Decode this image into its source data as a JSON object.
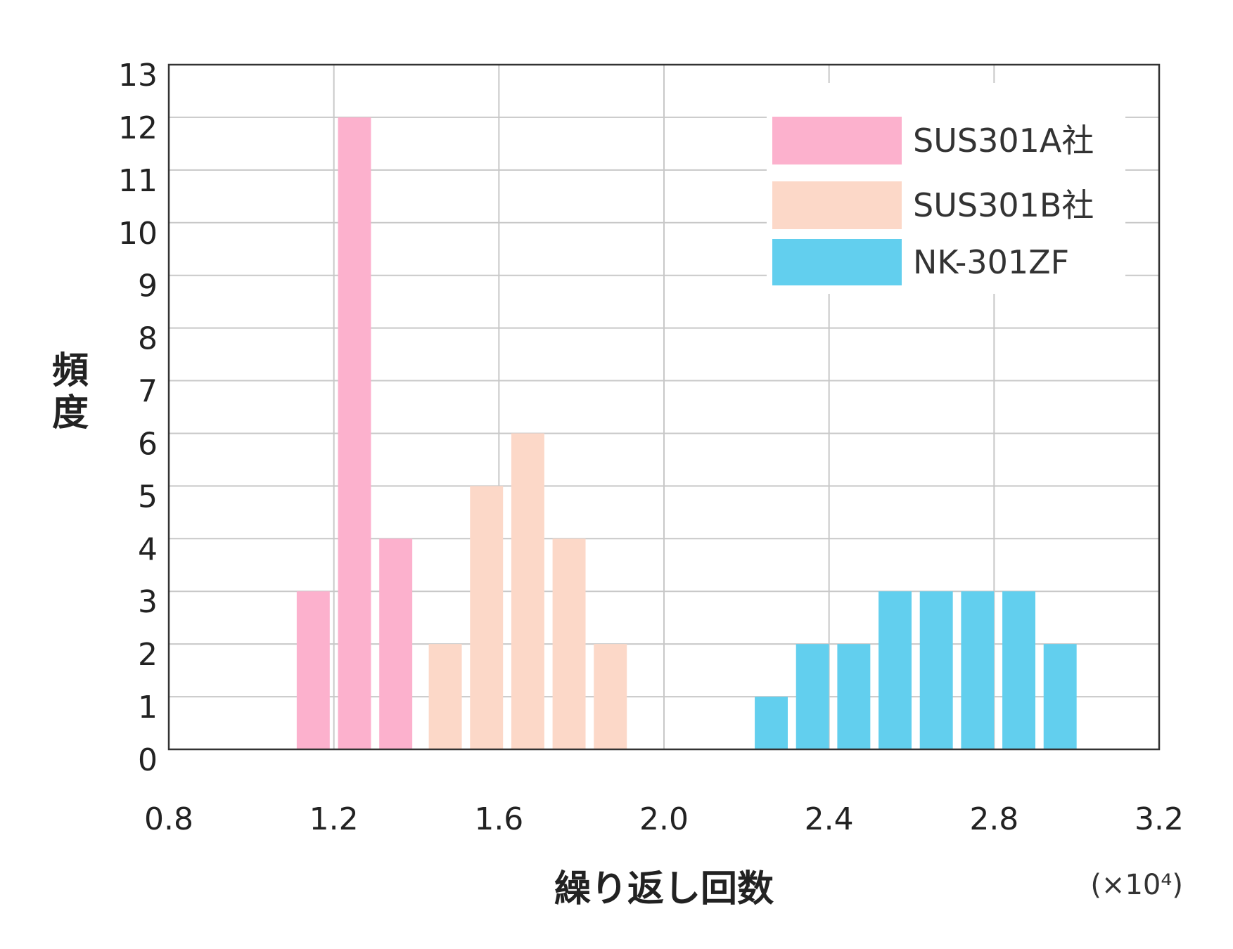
{
  "chart_data": {
    "type": "bar",
    "xlabel": "繰り返し回数",
    "ylabel": "頻度",
    "x_unit": "(×10⁴)",
    "xlim": [
      0.8,
      3.2
    ],
    "ylim": [
      0,
      13
    ],
    "x_ticks": [
      "0.8",
      "1.2",
      "1.6",
      "2.0",
      "2.4",
      "2.8",
      "3.2"
    ],
    "y_ticks": [
      "0",
      "1",
      "2",
      "3",
      "4",
      "5",
      "6",
      "7",
      "8",
      "9",
      "10",
      "11",
      "12",
      "13"
    ],
    "grid": true,
    "legend_position": "top-right",
    "series": [
      {
        "name": "SUS301A社",
        "color": "#fcb1cd",
        "bins": [
          {
            "x0": 1.11,
            "x1": 1.19,
            "value": 3
          },
          {
            "x0": 1.21,
            "x1": 1.29,
            "value": 12
          },
          {
            "x0": 1.31,
            "x1": 1.39,
            "value": 4
          }
        ]
      },
      {
        "name": "SUS301B社",
        "color": "#fcd8c8",
        "bins": [
          {
            "x0": 1.43,
            "x1": 1.51,
            "value": 2
          },
          {
            "x0": 1.53,
            "x1": 1.61,
            "value": 5
          },
          {
            "x0": 1.63,
            "x1": 1.71,
            "value": 6
          },
          {
            "x0": 1.73,
            "x1": 1.81,
            "value": 4
          },
          {
            "x0": 1.83,
            "x1": 1.91,
            "value": 2
          }
        ]
      },
      {
        "name": "NK-301ZF",
        "color": "#62cfee",
        "bins": [
          {
            "x0": 2.22,
            "x1": 2.3,
            "value": 1
          },
          {
            "x0": 2.32,
            "x1": 2.4,
            "value": 2
          },
          {
            "x0": 2.42,
            "x1": 2.5,
            "value": 2
          },
          {
            "x0": 2.52,
            "x1": 2.6,
            "value": 3
          },
          {
            "x0": 2.62,
            "x1": 2.7,
            "value": 3
          },
          {
            "x0": 2.72,
            "x1": 2.8,
            "value": 3
          },
          {
            "x0": 2.82,
            "x1": 2.9,
            "value": 3
          },
          {
            "x0": 2.92,
            "x1": 3.0,
            "value": 2
          }
        ]
      }
    ]
  }
}
